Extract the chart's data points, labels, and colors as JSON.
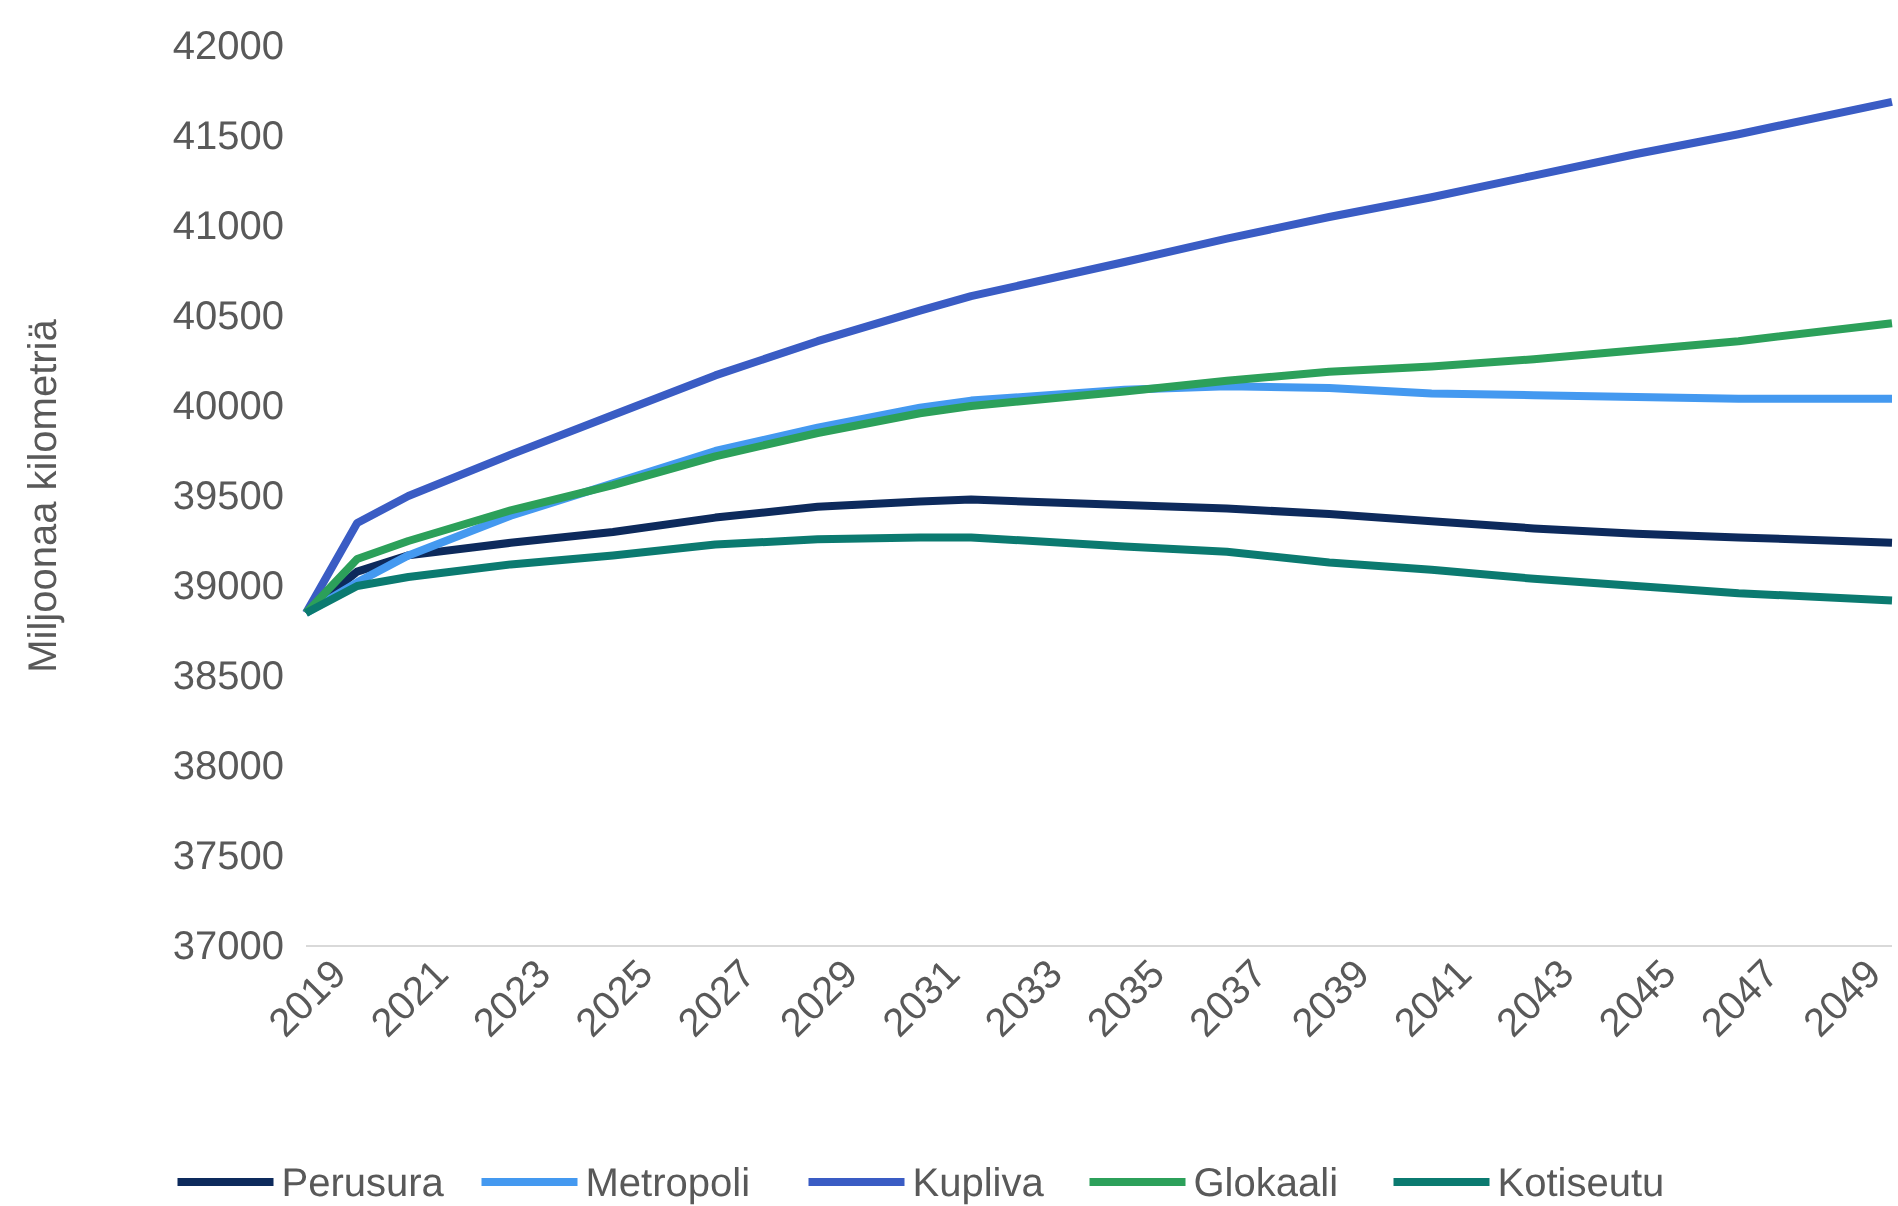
{
  "chart_data": {
    "type": "line",
    "ylabel": "Miljoonaa kilometriä",
    "xlim": [
      2019,
      2050
    ],
    "xticks": [
      2019,
      2021,
      2023,
      2025,
      2027,
      2029,
      2031,
      2033,
      2035,
      2037,
      2039,
      2041,
      2043,
      2045,
      2047,
      2049
    ],
    "ylim": [
      37000,
      42000
    ],
    "yticks": [
      37000,
      37500,
      38000,
      38500,
      39000,
      39500,
      40000,
      40500,
      41000,
      41500,
      42000
    ],
    "legend": "bottom",
    "line_style": "solid",
    "marker": "none",
    "x": [
      2019,
      2020,
      2021,
      2023,
      2025,
      2027,
      2029,
      2031,
      2032,
      2035,
      2037,
      2039,
      2041,
      2043,
      2045,
      2047,
      2050
    ],
    "series": [
      {
        "name": "Perusura",
        "color": "#0d2a5c",
        "values": [
          38850,
          39080,
          39170,
          39240,
          39300,
          39380,
          39440,
          39470,
          39480,
          39450,
          39430,
          39400,
          39360,
          39320,
          39290,
          39270,
          39240
        ]
      },
      {
        "name": "Metropoli",
        "color": "#4499f0",
        "values": [
          38850,
          39020,
          39170,
          39390,
          39570,
          39750,
          39880,
          39990,
          40030,
          40090,
          40110,
          40100,
          40070,
          40060,
          40050,
          40040,
          40040
        ]
      },
      {
        "name": "Kupliva",
        "color": "#3a5cc4",
        "values": [
          38850,
          39350,
          39500,
          39730,
          39950,
          40170,
          40360,
          40530,
          40610,
          40800,
          40930,
          41050,
          41160,
          41280,
          41400,
          41510,
          41690
        ]
      },
      {
        "name": "Glokaali",
        "color": "#2ca05a",
        "values": [
          38850,
          39150,
          39250,
          39420,
          39560,
          39720,
          39850,
          39960,
          40000,
          40080,
          40140,
          40190,
          40220,
          40260,
          40310,
          40360,
          40460
        ]
      },
      {
        "name": "Kotiseutu",
        "color": "#0b7a70",
        "values": [
          38850,
          39000,
          39050,
          39120,
          39170,
          39230,
          39260,
          39270,
          39270,
          39220,
          39190,
          39130,
          39090,
          39040,
          39000,
          38960,
          38920
        ]
      }
    ]
  }
}
